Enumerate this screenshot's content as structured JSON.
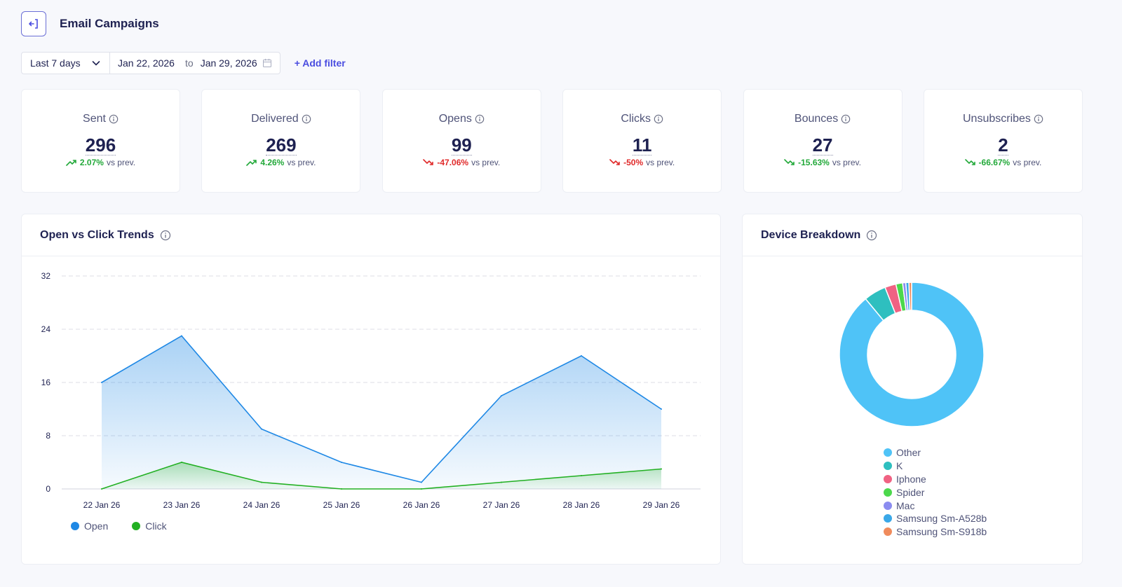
{
  "header": {
    "title": "Email Campaigns",
    "back_icon": "back-arrow-icon"
  },
  "filters": {
    "range_label": "Last 7 days",
    "start_date": "Jan 22, 2026",
    "to_label": "to",
    "end_date": "Jan 29, 2026",
    "add_filter_label": "+ Add filter"
  },
  "metrics": [
    {
      "label": "Sent",
      "value": "296",
      "change": "2.07%",
      "direction": "up",
      "vs": "vs prev."
    },
    {
      "label": "Delivered",
      "value": "269",
      "change": "4.26%",
      "direction": "up",
      "vs": "vs prev."
    },
    {
      "label": "Opens",
      "value": "99",
      "change": "-47.06%",
      "direction": "down",
      "vs": "vs prev."
    },
    {
      "label": "Clicks",
      "value": "11",
      "change": "-50%",
      "direction": "down",
      "vs": "vs prev."
    },
    {
      "label": "Bounces",
      "value": "27",
      "change": "-15.63%",
      "direction": "down-good",
      "vs": "vs prev."
    },
    {
      "label": "Unsubscribes",
      "value": "2",
      "change": "-66.67%",
      "direction": "down-good",
      "vs": "vs prev."
    }
  ],
  "trend_panel": {
    "title": "Open vs Click Trends"
  },
  "device_panel": {
    "title": "Device Breakdown"
  },
  "colors": {
    "open": "#1e88e5",
    "click": "#22b022",
    "green": "#23a93a",
    "red": "#e02a2a",
    "accent": "#4a4de0"
  },
  "chart_data": [
    {
      "type": "area",
      "title": "Open vs Click Trends",
      "categories": [
        "22 Jan 26",
        "23 Jan 26",
        "24 Jan 26",
        "25 Jan 26",
        "26 Jan 26",
        "27 Jan 26",
        "28 Jan 26",
        "29 Jan 26"
      ],
      "series": [
        {
          "name": "Open",
          "color": "#1e88e5",
          "values": [
            16,
            23,
            9,
            4,
            1,
            14,
            20,
            12
          ]
        },
        {
          "name": "Click",
          "color": "#22b022",
          "values": [
            0,
            4,
            1,
            0,
            0,
            1,
            2,
            3
          ]
        }
      ],
      "yticks": [
        0,
        8,
        16,
        24,
        32
      ],
      "ylim": [
        0,
        32
      ],
      "grid": true,
      "legend": "bottom-left"
    },
    {
      "type": "pie",
      "title": "Device Breakdown",
      "labels": [
        "Other",
        "K",
        "Iphone",
        "Spider",
        "Mac",
        "Samsung Sm-A528b",
        "Samsung Sm-S918b"
      ],
      "values": [
        89,
        5,
        2.5,
        1.5,
        0.7,
        0.7,
        0.6
      ],
      "colors": [
        "#4fc3f7",
        "#2ebfbf",
        "#f06283",
        "#4cd84c",
        "#8b8cf0",
        "#3aa8e8",
        "#f08b5c"
      ],
      "legend": "bottom"
    }
  ]
}
